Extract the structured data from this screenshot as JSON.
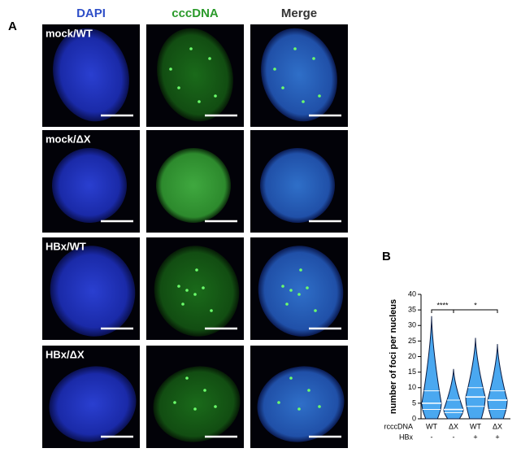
{
  "panel_a": {
    "label": "A",
    "columns": [
      "DAPI",
      "cccDNA",
      "Merge"
    ],
    "rows": [
      "mock/WT",
      "mock/ΔX",
      "HBx/WT",
      "HBx/ΔX"
    ]
  },
  "panel_b": {
    "label": "B"
  },
  "chart_data": {
    "type": "violin",
    "ylabel": "number of foci per nucleus",
    "x_rows": [
      {
        "label": "rcccDNA",
        "values": [
          "WT",
          "ΔX",
          "WT",
          "ΔX"
        ]
      },
      {
        "label": "HBx",
        "values": [
          "-",
          "-",
          "+",
          "+"
        ]
      }
    ],
    "series": [
      {
        "min": 0,
        "q1": 3,
        "median": 5,
        "q3": 9,
        "max": 33
      },
      {
        "min": 0,
        "q1": 2,
        "median": 3,
        "q3": 6,
        "max": 16
      },
      {
        "min": 0,
        "q1": 4,
        "median": 7,
        "q3": 10,
        "max": 26
      },
      {
        "min": 0,
        "q1": 3,
        "median": 6,
        "q3": 9,
        "max": 24
      }
    ],
    "color": "#4aa8f0",
    "ylim": [
      0,
      40
    ],
    "yticks": [
      0,
      5,
      10,
      15,
      20,
      25,
      30,
      35,
      40
    ],
    "significance": [
      {
        "from": 0,
        "to": 1,
        "label": "****"
      },
      {
        "from": 1,
        "to": 3,
        "label": "*"
      }
    ]
  }
}
